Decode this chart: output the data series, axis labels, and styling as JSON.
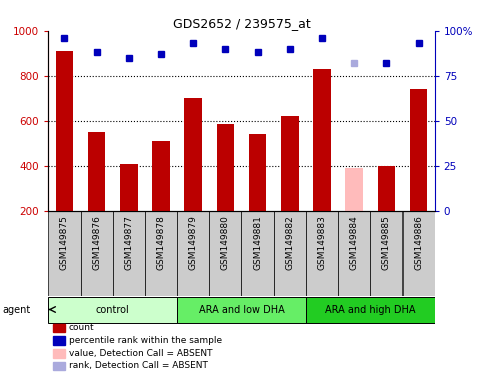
{
  "title": "GDS2652 / 239575_at",
  "samples": [
    "GSM149875",
    "GSM149876",
    "GSM149877",
    "GSM149878",
    "GSM149879",
    "GSM149880",
    "GSM149881",
    "GSM149882",
    "GSM149883",
    "GSM149884",
    "GSM149885",
    "GSM149886"
  ],
  "bar_values": [
    910,
    550,
    410,
    510,
    700,
    585,
    540,
    620,
    830,
    390,
    400,
    740
  ],
  "bar_colors": [
    "#bb0000",
    "#bb0000",
    "#bb0000",
    "#bb0000",
    "#bb0000",
    "#bb0000",
    "#bb0000",
    "#bb0000",
    "#bb0000",
    "#ffbbbb",
    "#bb0000",
    "#bb0000"
  ],
  "rank_values": [
    96,
    88,
    85,
    87,
    93,
    90,
    88,
    90,
    96,
    82,
    82,
    93
  ],
  "rank_absent": [
    false,
    false,
    false,
    false,
    false,
    false,
    false,
    false,
    false,
    true,
    false,
    false
  ],
  "ylim_left": [
    200,
    1000
  ],
  "ylim_right": [
    0,
    100
  ],
  "yticks_left": [
    200,
    400,
    600,
    800,
    1000
  ],
  "yticks_right": [
    0,
    25,
    50,
    75,
    100
  ],
  "groups": [
    {
      "label": "control",
      "start": 0,
      "end": 3,
      "color": "#ccffcc"
    },
    {
      "label": "ARA and low DHA",
      "start": 4,
      "end": 7,
      "color": "#66ee66"
    },
    {
      "label": "ARA and high DHA",
      "start": 8,
      "end": 11,
      "color": "#22cc22"
    }
  ],
  "bar_width": 0.55,
  "dot_color_present": "#0000bb",
  "dot_color_absent": "#aaaadd",
  "right_axis_color": "#0000bb",
  "left_axis_color": "#cc0000",
  "sample_bg_color": "#cccccc",
  "plot_bg_color": "#ffffff",
  "legend_items": [
    {
      "color": "#bb0000",
      "label": "count",
      "type": "patch"
    },
    {
      "color": "#0000bb",
      "label": "percentile rank within the sample",
      "type": "square"
    },
    {
      "color": "#ffbbbb",
      "label": "value, Detection Call = ABSENT",
      "type": "patch"
    },
    {
      "color": "#aaaadd",
      "label": "rank, Detection Call = ABSENT",
      "type": "patch"
    }
  ]
}
